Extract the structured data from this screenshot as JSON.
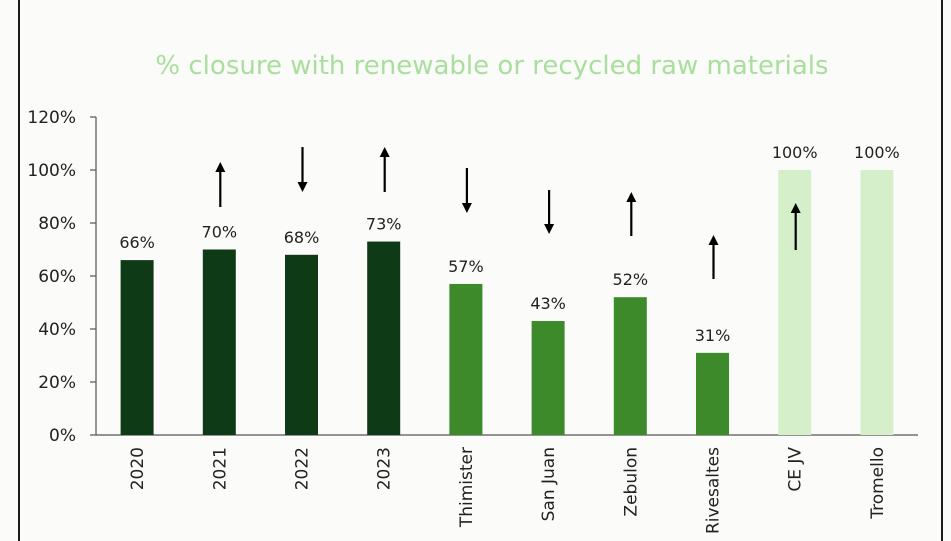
{
  "chart_data": {
    "type": "bar",
    "title": "% closure with renewable or recycled raw materials",
    "xlabel": "",
    "ylabel": "",
    "ylim": [
      0,
      120
    ],
    "yticks": [
      "0%",
      "20%",
      "40%",
      "60%",
      "80%",
      "100%",
      "120%"
    ],
    "categories": [
      "2020",
      "2021",
      "2022",
      "2023",
      "Thimister",
      "San Juan",
      "Zebulon",
      "Rivesaltes",
      "CE JV",
      "Tromello"
    ],
    "values": [
      66,
      70,
      68,
      73,
      57,
      43,
      52,
      31,
      100,
      100
    ],
    "data_labels": [
      "66%",
      "70%",
      "68%",
      "73%",
      "57%",
      "43%",
      "52%",
      "31%",
      "100%",
      "100%"
    ],
    "bar_colors": [
      "#0f3a16",
      "#0f3a16",
      "#0f3a16",
      "#0f3a16",
      "#3d8a2a",
      "#3d8a2a",
      "#3d8a2a",
      "#3d8a2a",
      "#d5efca",
      "#d5efca"
    ],
    "trend_arrows": [
      "none",
      "up",
      "down",
      "up",
      "down",
      "down",
      "up",
      "up",
      "up",
      "none"
    ],
    "grid": false,
    "legend": "none"
  }
}
